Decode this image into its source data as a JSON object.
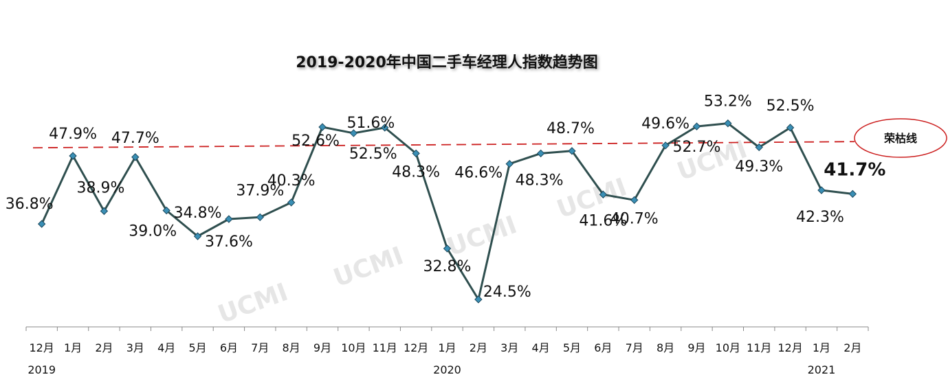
{
  "chart_data": {
    "type": "line",
    "title": "2019-2020年中国二手车经理人指数趋势图",
    "categories": [
      "12月",
      "1月",
      "2月",
      "3月",
      "4月",
      "5月",
      "6月",
      "7月",
      "8月",
      "9月",
      "10月",
      "11月",
      "12月",
      "1月",
      "2月",
      "3月",
      "4月",
      "5月",
      "6月",
      "7月",
      "8月",
      "9月",
      "10月",
      "11月",
      "12月",
      "1月",
      "2月"
    ],
    "values": [
      36.8,
      47.9,
      38.9,
      47.7,
      39.0,
      34.8,
      37.6,
      37.9,
      40.3,
      52.6,
      51.6,
      52.5,
      48.3,
      32.8,
      24.5,
      46.6,
      48.3,
      48.7,
      41.6,
      40.7,
      49.6,
      52.7,
      53.2,
      49.3,
      52.5,
      42.3,
      41.7
    ],
    "data_labels": [
      "36.8%",
      "47.9%",
      "38.9%",
      "47.7%",
      "39.0%",
      "34.8%",
      "37.6%",
      "37.9%",
      "40.3%",
      "52.6%",
      "51.6%",
      "52.5%",
      "48.3%",
      "32.8%",
      "24.5%",
      "46.6%",
      "48.3%",
      "48.7%",
      "41.6%",
      "40.7%",
      "49.6%",
      "52.7%",
      "53.2%",
      "49.3%",
      "52.5%",
      "42.3%",
      "41.7%"
    ],
    "years": [
      {
        "label": "2019",
        "index": 0
      },
      {
        "label": "2020",
        "index": 13
      },
      {
        "label": "2021",
        "index": 25
      }
    ],
    "reference_line": {
      "value": 50,
      "label": "荣枯线"
    },
    "ylim": [
      15,
      62
    ],
    "colors": {
      "line": "#2f4f4f",
      "marker": "#3a8fb5",
      "reference": "#cc1f1f"
    },
    "watermark": "UCMI"
  }
}
